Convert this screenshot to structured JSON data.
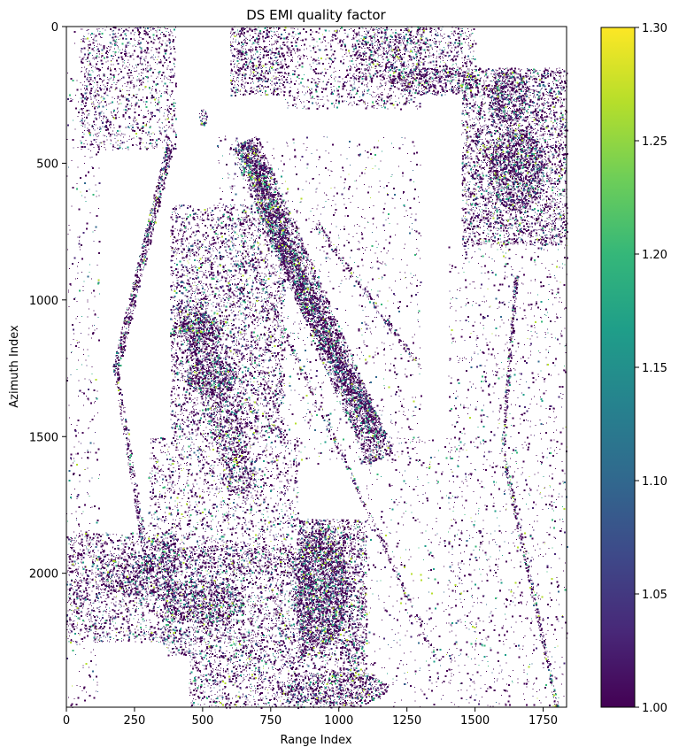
{
  "chart_data": {
    "type": "heatmap",
    "title": "DS EMI quality factor",
    "xlabel": "Range Index",
    "ylabel": "Azimuth Index",
    "xlim": [
      0,
      1836
    ],
    "ylim": [
      2490,
      0
    ],
    "xticks": [
      0,
      250,
      500,
      750,
      1000,
      1250,
      1500,
      1750
    ],
    "yticks": [
      0,
      500,
      1000,
      1500,
      2000
    ],
    "colorbar": {
      "colormap": "viridis",
      "range": [
        1.0,
        1.3
      ],
      "ticks": [
        "1.00",
        "1.05",
        "1.10",
        "1.15",
        "1.20",
        "1.25",
        "1.30"
      ],
      "stops": [
        "#440154",
        "#482878",
        "#3e4989",
        "#31688e",
        "#26828e",
        "#1f9e89",
        "#35b779",
        "#6ece58",
        "#b5de2b",
        "#fde725"
      ]
    },
    "background_color": "#ffffff",
    "notes": "sparse field of pixels; white = no data; most valid pixels near 1.00 (dark purple), a few up to ~1.3",
    "regions": [
      {
        "x": [
          50,
          400
        ],
        "y": [
          0,
          450
        ],
        "density": 0.25
      },
      {
        "x": [
          600,
          800
        ],
        "y": [
          0,
          250
        ],
        "density": 0.45
      },
      {
        "x": [
          800,
          1300
        ],
        "y": [
          0,
          300
        ],
        "density": 0.2
      },
      {
        "x": [
          1050,
          1500
        ],
        "y": [
          0,
          200
        ],
        "density": 0.3
      },
      {
        "x": [
          1450,
          1836
        ],
        "y": [
          150,
          800
        ],
        "density": 0.45
      },
      {
        "x": [
          1400,
          1836
        ],
        "y": [
          800,
          2490
        ],
        "density": 0.06
      },
      {
        "x": [
          380,
          800
        ],
        "y": [
          650,
          1500
        ],
        "density": 0.3
      },
      {
        "x": [
          300,
          850
        ],
        "y": [
          1500,
          2000
        ],
        "density": 0.2
      },
      {
        "x": [
          0,
          400
        ],
        "y": [
          1850,
          2250
        ],
        "density": 0.3
      },
      {
        "x": [
          350,
          900
        ],
        "y": [
          1900,
          2300
        ],
        "density": 0.35
      },
      {
        "x": [
          850,
          1100
        ],
        "y": [
          1800,
          2300
        ],
        "density": 0.55
      },
      {
        "x": [
          450,
          1100
        ],
        "y": [
          2300,
          2490
        ],
        "density": 0.3
      },
      {
        "x": [
          0,
          120
        ],
        "y": [
          0,
          2490
        ],
        "density": 0.05
      },
      {
        "x": [
          550,
          1300
        ],
        "y": [
          400,
          1600
        ],
        "density": 0.05
      },
      {
        "x": [
          1100,
          1450
        ],
        "y": [
          1500,
          2490
        ],
        "density": 0.04
      }
    ],
    "strips": [
      {
        "from": [
          650,
          420
        ],
        "to": [
          1150,
          1580
        ],
        "width": 110,
        "density": 0.5
      },
      {
        "from": [
          650,
          420
        ],
        "to": [
          900,
          1050
        ],
        "width": 60,
        "density": 0.7
      },
      {
        "from": [
          900,
          1050
        ],
        "to": [
          1150,
          1500
        ],
        "width": 60,
        "density": 0.55
      },
      {
        "from": [
          380,
          430
        ],
        "to": [
          180,
          1250
        ],
        "width": 28,
        "density": 0.7
      },
      {
        "from": [
          180,
          1250
        ],
        "to": [
          300,
          2000
        ],
        "width": 20,
        "density": 0.45
      },
      {
        "from": [
          700,
          900
        ],
        "to": [
          1350,
          2300
        ],
        "width": 15,
        "density": 0.3
      },
      {
        "from": [
          1650,
          900
        ],
        "to": [
          1600,
          1550
        ],
        "width": 14,
        "density": 0.55
      },
      {
        "from": [
          1600,
          1550
        ],
        "to": [
          1800,
          2490
        ],
        "width": 14,
        "density": 0.55
      },
      {
        "from": [
          900,
          700
        ],
        "to": [
          1300,
          1250
        ],
        "width": 18,
        "density": 0.35
      },
      {
        "from": [
          450,
          1000
        ],
        "to": [
          650,
          1700
        ],
        "width": 110,
        "density": 0.3
      }
    ],
    "blobs": [
      {
        "cx": 490,
        "cy": 1100,
        "rx": 80,
        "ry": 60,
        "density": 0.6
      },
      {
        "cx": 530,
        "cy": 1280,
        "rx": 90,
        "ry": 70,
        "density": 0.5
      },
      {
        "cx": 930,
        "cy": 2050,
        "rx": 100,
        "ry": 220,
        "density": 0.55
      },
      {
        "cx": 1650,
        "cy": 520,
        "rx": 100,
        "ry": 150,
        "density": 0.55
      },
      {
        "cx": 1620,
        "cy": 250,
        "rx": 70,
        "ry": 100,
        "density": 0.5
      },
      {
        "cx": 500,
        "cy": 2100,
        "rx": 150,
        "ry": 80,
        "density": 0.45
      },
      {
        "cx": 250,
        "cy": 2000,
        "rx": 140,
        "ry": 80,
        "density": 0.35
      },
      {
        "cx": 1350,
        "cy": 200,
        "rx": 160,
        "ry": 50,
        "density": 0.45
      },
      {
        "cx": 980,
        "cy": 2420,
        "rx": 200,
        "ry": 60,
        "density": 0.4
      },
      {
        "cx": 500,
        "cy": 330,
        "rx": 15,
        "ry": 30,
        "density": 0.8
      }
    ]
  }
}
